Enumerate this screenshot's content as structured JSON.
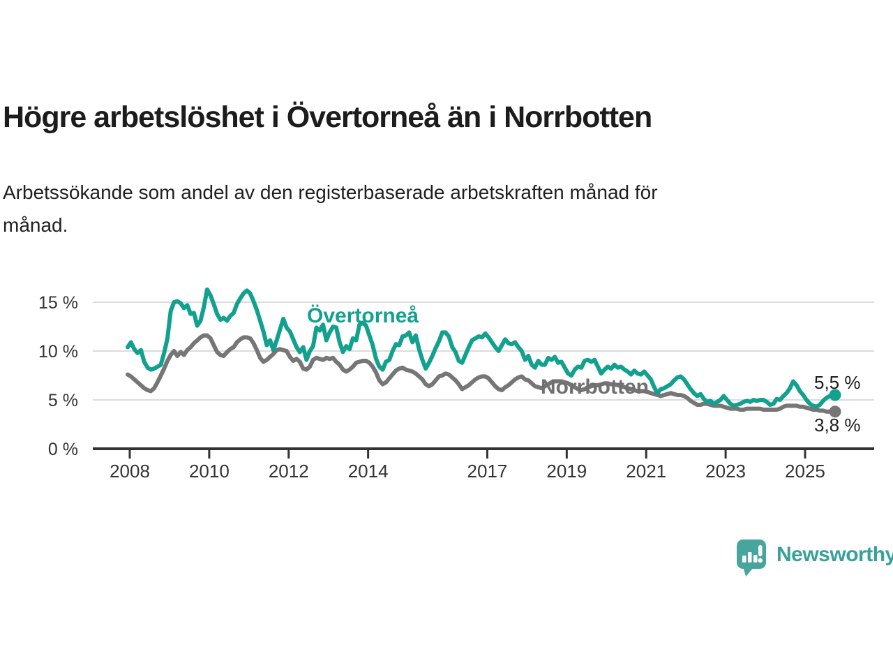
{
  "page": {
    "title": "Högre arbetslöshet i Övertorneå än i Norrbotten",
    "subtitle_lines": [
      "Arbetssökande som andel av den registerbaserade arbetskraften månad för",
      "månad."
    ]
  },
  "branding": {
    "logo_text": "Newsworthy",
    "logo_text_color": "#36a299",
    "logo_bubble_color": "#47a59d",
    "logo_icon": "speech-bubble-bar-chart-icon"
  },
  "chart_data": {
    "type": "line",
    "title": "Högre arbetslöshet i Övertorneå än i Norrbotten",
    "ylabel": "",
    "xlabel": "",
    "unit": "%",
    "grid": "horizontal",
    "ylim": [
      0,
      17
    ],
    "x_start": "2008-01",
    "x_end": "2025-10",
    "x_tick_years": [
      "2008",
      "2010",
      "2012",
      "2014",
      "2017",
      "2019",
      "2021",
      "2023",
      "2025"
    ],
    "y_ticks": [
      {
        "value": 0,
        "label": "0 %"
      },
      {
        "value": 5,
        "label": "5 %"
      },
      {
        "value": 10,
        "label": "10 %"
      },
      {
        "value": 15,
        "label": "15 %"
      }
    ],
    "colors": {
      "axis": "#333333",
      "gridline": "#dcdcdc",
      "tick_text": "#333333"
    },
    "series": [
      {
        "name": "Norrbotten",
        "color": "#767676",
        "label_color": "#707070",
        "end_label": "3,8 %",
        "end_value": 3.8,
        "values": [
          7.6,
          7.4,
          7.1,
          6.8,
          6.5,
          6.2,
          6.0,
          5.9,
          6.2,
          6.8,
          7.5,
          8.2,
          9.0,
          9.6,
          10.0,
          9.5,
          9.9,
          9.6,
          10.1,
          10.4,
          10.8,
          11.1,
          11.4,
          11.6,
          11.6,
          11.3,
          10.6,
          9.9,
          9.6,
          9.5,
          9.9,
          10.2,
          10.4,
          10.9,
          11.2,
          11.4,
          11.4,
          11.3,
          10.8,
          10.1,
          9.3,
          8.9,
          9.1,
          9.4,
          9.7,
          10.1,
          10.2,
          10.1,
          10.0,
          9.4,
          9.0,
          9.2,
          8.9,
          8.2,
          8.1,
          8.4,
          9.1,
          9.3,
          9.2,
          9.1,
          9.3,
          9.2,
          9.3,
          8.9,
          8.6,
          8.1,
          7.9,
          8.1,
          8.4,
          8.8,
          8.9,
          9.0,
          9.0,
          8.8,
          8.4,
          7.8,
          7.0,
          6.6,
          6.8,
          7.2,
          7.6,
          8.0,
          8.2,
          8.3,
          8.1,
          8.0,
          7.9,
          7.7,
          7.4,
          7.1,
          6.6,
          6.4,
          6.6,
          7.0,
          7.4,
          7.5,
          7.7,
          7.6,
          7.3,
          7.0,
          6.6,
          6.1,
          6.3,
          6.5,
          6.8,
          7.1,
          7.3,
          7.4,
          7.4,
          7.2,
          6.8,
          6.4,
          6.1,
          6.0,
          6.3,
          6.5,
          6.8,
          7.1,
          7.3,
          7.4,
          7.1,
          7.0,
          6.7,
          6.4,
          6.3,
          6.2,
          6.4,
          6.6,
          6.8,
          6.9,
          6.9,
          6.9,
          6.8,
          6.7,
          6.5,
          6.3,
          6.1,
          6.0,
          6.1,
          6.3,
          6.4,
          6.5,
          6.5,
          6.6,
          6.7,
          6.7,
          6.6,
          6.6,
          6.5,
          6.4,
          6.3,
          6.2,
          6.1,
          6.0,
          5.9,
          5.9,
          5.9,
          5.8,
          5.7,
          5.6,
          5.5,
          5.4,
          5.5,
          5.6,
          5.7,
          5.6,
          5.5,
          5.5,
          5.4,
          5.2,
          4.9,
          4.7,
          4.5,
          4.5,
          4.6,
          4.6,
          4.5,
          4.4,
          4.4,
          4.4,
          4.3,
          4.2,
          4.1,
          4.1,
          4.1,
          4.0,
          4.0,
          4.1,
          4.1,
          4.1,
          4.1,
          4.1,
          4.0,
          4.0,
          4.0,
          4.0,
          4.0,
          4.1,
          4.3,
          4.4,
          4.4,
          4.4,
          4.4,
          4.3,
          4.3,
          4.2,
          4.1,
          4.0,
          4.0,
          3.9,
          3.9,
          3.8,
          3.8,
          3.8
        ]
      },
      {
        "name": "Övertorneå",
        "color": "#12a08f",
        "label_color": "#12a08f",
        "end_label": "5,5 %",
        "end_value": 5.5,
        "values": [
          10.4,
          10.9,
          10.2,
          9.8,
          10.1,
          8.9,
          8.3,
          8.1,
          8.2,
          8.4,
          8.6,
          9.8,
          11.3,
          14.1,
          15.0,
          15.1,
          14.9,
          14.4,
          14.7,
          13.8,
          13.9,
          12.6,
          13.1,
          14.5,
          16.3,
          15.7,
          14.8,
          13.8,
          13.2,
          13.4,
          13.1,
          13.6,
          13.9,
          14.8,
          15.4,
          15.9,
          16.2,
          15.9,
          15.1,
          14.2,
          13.1,
          12.0,
          10.6,
          11.1,
          10.1,
          11.1,
          12.2,
          13.3,
          12.4,
          12.0,
          11.2,
          10.4,
          9.9,
          10.4,
          9.1,
          10.0,
          10.5,
          12.4,
          12.1,
          12.7,
          11.1,
          11.9,
          12.5,
          12.4,
          10.9,
          9.9,
          10.5,
          10.2,
          11.3,
          11.1,
          12.7,
          12.9,
          12.6,
          11.6,
          10.6,
          9.2,
          8.4,
          8.1,
          8.9,
          9.1,
          10.0,
          10.7,
          10.6,
          11.5,
          11.6,
          11.9,
          10.9,
          11.6,
          10.2,
          9.1,
          8.2,
          8.8,
          9.5,
          10.3,
          11.0,
          11.9,
          11.9,
          11.5,
          10.4,
          9.9,
          9.0,
          8.8,
          9.6,
          10.4,
          11.1,
          11.3,
          11.5,
          11.4,
          11.8,
          11.4,
          10.9,
          10.4,
          10.0,
          10.6,
          11.2,
          10.8,
          10.7,
          10.9,
          10.4,
          10.0,
          9.1,
          9.5,
          8.6,
          8.3,
          9.0,
          8.6,
          8.6,
          9.3,
          9.1,
          9.4,
          8.8,
          8.9,
          8.3,
          7.7,
          7.5,
          8.1,
          8.4,
          8.3,
          9.0,
          9.1,
          8.9,
          9.1,
          8.4,
          7.7,
          8.1,
          8.4,
          8.2,
          8.6,
          8.3,
          8.4,
          8.1,
          7.9,
          7.6,
          8.0,
          7.7,
          7.6,
          7.9,
          7.5,
          7.1,
          6.3,
          5.7,
          6.1,
          6.2,
          6.4,
          6.6,
          7.0,
          7.3,
          7.4,
          7.1,
          6.6,
          6.1,
          5.7,
          5.4,
          5.6,
          5.1,
          4.8,
          4.9,
          4.6,
          4.8,
          5.0,
          5.4,
          5.0,
          4.6,
          4.4,
          4.5,
          4.6,
          4.8,
          4.9,
          4.8,
          5.0,
          4.9,
          5.0,
          5.0,
          4.8,
          4.5,
          4.6,
          5.1,
          5.0,
          5.4,
          5.7,
          6.2,
          6.9,
          6.5,
          5.9,
          5.5,
          5.0,
          4.6,
          4.4,
          4.3,
          4.5,
          4.9,
          5.2,
          5.4,
          5.5
        ]
      }
    ]
  }
}
